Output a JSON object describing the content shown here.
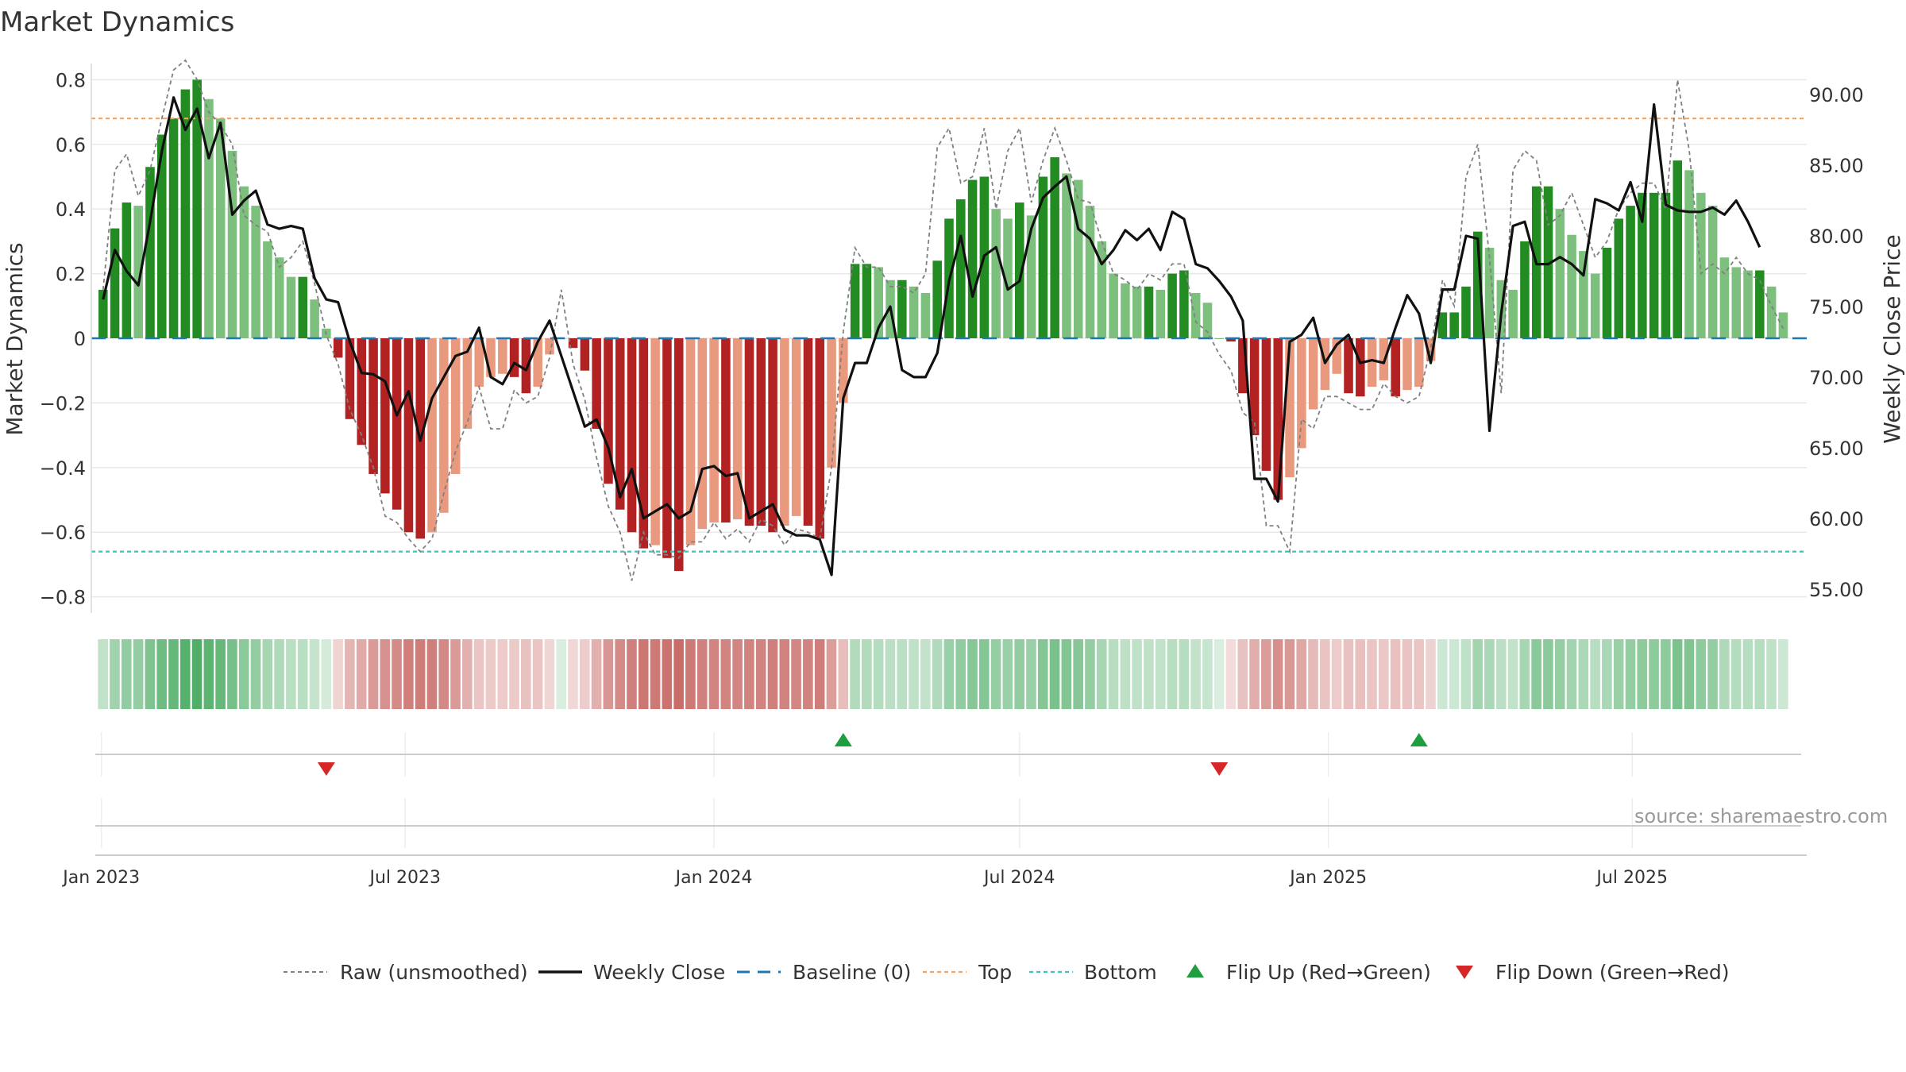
{
  "title": "Market Dynamics",
  "source": "source: sharemaestro.com",
  "colors": {
    "strong_green": "#228B22",
    "light_green": "#7DC07D",
    "strong_red": "#B22222",
    "light_red": "#E99A7E",
    "close_line": "#111111",
    "raw_line": "#808080",
    "baseline": "#1F77B4",
    "top_line": "#F4A460",
    "bottom_line": "#40C0C0",
    "flip_up": "#1E9E3E",
    "flip_down": "#D62728"
  },
  "chart_data": {
    "type": "bar",
    "title": "Market Dynamics",
    "y_left_label": "Market Dynamics",
    "y_right_label": "Weekly Close Price",
    "y_left_range": [
      -0.85,
      0.85
    ],
    "y_right_range": [
      53.3,
      92.2
    ],
    "y_left_ticks": [
      "0.8",
      "0.6",
      "0.4",
      "0.2",
      "0",
      "−0.2",
      "−0.4",
      "−0.6",
      "−0.8"
    ],
    "y_right_ticks": [
      "90.00",
      "85.00",
      "80.00",
      "75.00",
      "70.00",
      "65.00",
      "60.00",
      "55.00"
    ],
    "x_ticks": [
      "Jan 2023",
      "Jul 2023",
      "Jan 2024",
      "Jul 2024",
      "Jan 2025",
      "Jul 2025"
    ],
    "x_range": [
      "2022-12-26",
      "2025-10-13"
    ],
    "grid": true,
    "legend_position": "bottom",
    "top_level": 0.68,
    "bottom_level": -0.66,
    "baseline": 0,
    "legend": [
      {
        "label": "Raw (unsmoothed)",
        "style": "dashed-gray"
      },
      {
        "label": "Weekly Close",
        "style": "solid-black"
      },
      {
        "label": "Baseline (0)",
        "style": "dashed-blue"
      },
      {
        "label": "Top",
        "style": "dotted-orange"
      },
      {
        "label": "Bottom",
        "style": "dotted-teal"
      },
      {
        "label": "Flip Up (Red→Green)",
        "style": "triangle-up-green"
      },
      {
        "label": "Flip Down (Green→Red)",
        "style": "triangle-down-red"
      }
    ],
    "start_date": "2023-01-02",
    "week_step": 1,
    "momentum": [
      0.15,
      0.34,
      0.42,
      0.41,
      0.53,
      0.63,
      0.68,
      0.77,
      0.8,
      0.74,
      0.68,
      0.58,
      0.47,
      0.41,
      0.3,
      0.25,
      0.19,
      0.19,
      0.12,
      0.03,
      -0.06,
      -0.25,
      -0.33,
      -0.42,
      -0.48,
      -0.53,
      -0.6,
      -0.62,
      -0.6,
      -0.54,
      -0.42,
      -0.28,
      -0.15,
      -0.12,
      -0.11,
      -0.12,
      -0.17,
      -0.15,
      -0.05,
      0.0,
      -0.03,
      -0.1,
      -0.28,
      -0.45,
      -0.53,
      -0.6,
      -0.65,
      -0.64,
      -0.68,
      -0.72,
      -0.64,
      -0.59,
      -0.57,
      -0.57,
      -0.56,
      -0.58,
      -0.58,
      -0.6,
      -0.58,
      -0.55,
      -0.58,
      -0.62,
      -0.4,
      -0.2,
      0.23,
      0.23,
      0.22,
      0.18,
      0.18,
      0.16,
      0.14,
      0.24,
      0.37,
      0.43,
      0.49,
      0.5,
      0.4,
      0.37,
      0.42,
      0.38,
      0.5,
      0.56,
      0.51,
      0.49,
      0.41,
      0.3,
      0.2,
      0.17,
      0.16,
      0.16,
      0.15,
      0.2,
      0.21,
      0.14,
      0.11,
      0.0,
      -0.01,
      -0.17,
      -0.3,
      -0.41,
      -0.5,
      -0.43,
      -0.34,
      -0.22,
      -0.16,
      -0.11,
      -0.17,
      -0.18,
      -0.15,
      -0.13,
      -0.18,
      -0.16,
      -0.15,
      -0.07,
      0.08,
      0.08,
      0.16,
      0.33,
      0.28,
      0.18,
      0.15,
      0.3,
      0.47,
      0.47,
      0.4,
      0.32,
      0.27,
      0.2,
      0.28,
      0.37,
      0.41,
      0.45,
      0.45,
      0.45,
      0.55,
      0.52,
      0.45,
      0.41,
      0.25,
      0.22,
      0.21,
      0.21,
      0.16,
      0.08
    ],
    "raw": [
      0.15,
      0.52,
      0.57,
      0.44,
      0.52,
      0.68,
      0.83,
      0.86,
      0.8,
      0.7,
      0.66,
      0.6,
      0.38,
      0.35,
      0.33,
      0.22,
      0.25,
      0.3,
      0.17,
      0.01,
      -0.08,
      -0.22,
      -0.3,
      -0.4,
      -0.55,
      -0.57,
      -0.62,
      -0.66,
      -0.62,
      -0.48,
      -0.35,
      -0.26,
      -0.15,
      -0.28,
      -0.28,
      -0.16,
      -0.2,
      -0.18,
      -0.06,
      0.15,
      -0.08,
      -0.19,
      -0.37,
      -0.52,
      -0.6,
      -0.75,
      -0.6,
      -0.67,
      -0.67,
      -0.68,
      -0.63,
      -0.63,
      -0.57,
      -0.62,
      -0.59,
      -0.63,
      -0.56,
      -0.58,
      -0.64,
      -0.59,
      -0.6,
      -0.62,
      -0.4,
      0.02,
      0.28,
      0.22,
      0.22,
      0.16,
      0.16,
      0.14,
      0.2,
      0.59,
      0.65,
      0.48,
      0.5,
      0.65,
      0.4,
      0.58,
      0.65,
      0.42,
      0.55,
      0.65,
      0.55,
      0.43,
      0.42,
      0.3,
      0.2,
      0.18,
      0.15,
      0.2,
      0.18,
      0.23,
      0.23,
      0.05,
      0.02,
      -0.05,
      -0.1,
      -0.23,
      -0.26,
      -0.58,
      -0.58,
      -0.66,
      -0.25,
      -0.28,
      -0.18,
      -0.18,
      -0.2,
      -0.22,
      -0.22,
      -0.14,
      -0.18,
      -0.2,
      -0.18,
      -0.03,
      0.18,
      0.1,
      0.5,
      0.6,
      0.25,
      -0.17,
      0.52,
      0.58,
      0.55,
      0.35,
      0.38,
      0.45,
      0.35,
      0.25,
      0.3,
      0.4,
      0.45,
      0.48,
      0.48,
      0.4,
      0.8,
      0.58,
      0.2,
      0.23,
      0.2,
      0.25,
      0.2,
      0.18,
      0.1,
      0.03
    ],
    "close": [
      75.5,
      79.0,
      77.5,
      76.5,
      81.0,
      86.0,
      89.8,
      87.5,
      89.0,
      85.5,
      88.0,
      81.5,
      82.5,
      83.2,
      80.8,
      80.5,
      80.7,
      80.5,
      77.0,
      75.5,
      75.3,
      72.5,
      70.3,
      70.2,
      69.7,
      67.3,
      69.0,
      65.5,
      68.5,
      70.0,
      71.5,
      71.8,
      73.5,
      70.0,
      69.5,
      71.0,
      70.5,
      72.5,
      74.0,
      71.5,
      69.0,
      66.5,
      67.0,
      65.0,
      61.5,
      63.5,
      60.0,
      60.5,
      61.0,
      60.0,
      60.5,
      63.5,
      63.7,
      63.0,
      63.2,
      60.0,
      60.5,
      61.0,
      59.2,
      58.8,
      58.8,
      58.5,
      56.0,
      68.5,
      71.0,
      71.0,
      73.5,
      75.0,
      70.5,
      70.0,
      70.0,
      71.7,
      76.8,
      80.0,
      75.7,
      78.6,
      79.2,
      76.2,
      76.8,
      80.5,
      82.7,
      83.5,
      84.2,
      80.5,
      79.8,
      78.0,
      79.0,
      80.4,
      79.7,
      80.5,
      79.0,
      81.7,
      81.2,
      78.0,
      77.7,
      76.8,
      75.7,
      74.0,
      62.8,
      62.8,
      61.2,
      72.5,
      73.0,
      74.2,
      71.0,
      72.3,
      73.0,
      71.0,
      71.2,
      71.0,
      73.5,
      75.8,
      74.5,
      71.0,
      76.2,
      76.2,
      80.0,
      79.8,
      66.2,
      74.5,
      80.7,
      81.0,
      78.0,
      78.0,
      78.5,
      78.0,
      77.2,
      82.6,
      82.3,
      81.8,
      83.8,
      81.0,
      89.3,
      82.2,
      81.8,
      81.7,
      81.7,
      82.0,
      81.5,
      82.5,
      81.0,
      79.2
    ],
    "regime_strip": [
      "green",
      "red",
      "green",
      "red",
      "green"
    ],
    "flip_up_dates": [
      "2024-03-18",
      "2025-02-24"
    ],
    "flip_down_dates": [
      "2023-05-15",
      "2024-10-28"
    ]
  }
}
